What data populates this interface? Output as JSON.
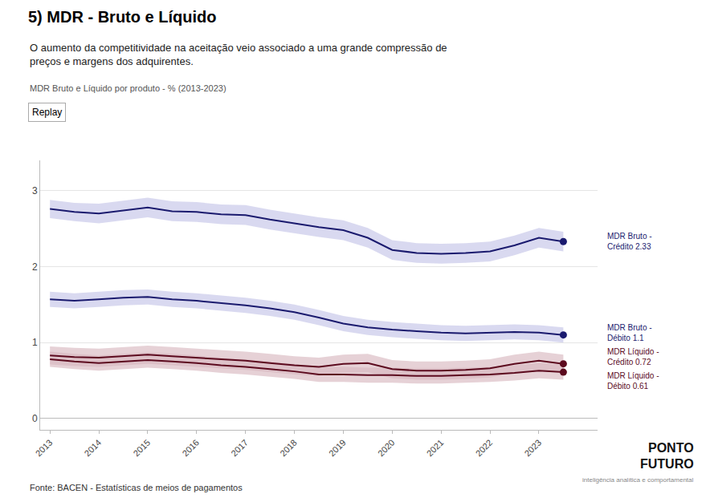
{
  "chart_data": {
    "type": "line",
    "title": "5) MDR - Bruto e Líquido",
    "subtitle": "O aumento da competitividade na aceitação veio associado a uma grande compressão de\npreços e margens dos adquirentes.",
    "chart_label": "MDR Bruto e Líquido por produto - % (2013-2023)",
    "button": "Replay",
    "source": "Fonte: BACEN - Estatísticas de meios de pagamentos",
    "logo": [
      "PONTO",
      "FUTURO",
      "inteligência analítica e comportamental"
    ],
    "x": [
      2013,
      2013.5,
      2014,
      2014.5,
      2015,
      2015.5,
      2016,
      2016.5,
      2017,
      2017.5,
      2018,
      2018.5,
      2019,
      2019.5,
      2020,
      2020.5,
      2021,
      2021.5,
      2022,
      2022.5,
      2023,
      2023.5
    ],
    "series": [
      {
        "label": "MDR Bruto -\nCrédito 2.33",
        "color": "#1a1a6e",
        "band_color": "#c5c5e8",
        "values": [
          2.76,
          2.72,
          2.7,
          2.74,
          2.78,
          2.73,
          2.72,
          2.69,
          2.68,
          2.62,
          2.57,
          2.52,
          2.48,
          2.38,
          2.22,
          2.18,
          2.17,
          2.18,
          2.2,
          2.28,
          2.38,
          2.33
        ],
        "upper": [
          2.88,
          2.84,
          2.83,
          2.87,
          2.91,
          2.86,
          2.85,
          2.82,
          2.81,
          2.75,
          2.7,
          2.65,
          2.61,
          2.51,
          2.35,
          2.31,
          2.3,
          2.31,
          2.33,
          2.41,
          2.51,
          2.46
        ],
        "lower": [
          2.64,
          2.6,
          2.57,
          2.61,
          2.65,
          2.6,
          2.59,
          2.56,
          2.55,
          2.49,
          2.44,
          2.39,
          2.35,
          2.25,
          2.09,
          2.05,
          2.04,
          2.05,
          2.07,
          2.15,
          2.25,
          2.2
        ]
      },
      {
        "label": "MDR Bruto -\nDébito 1.1",
        "color": "#1a1a6e",
        "band_color": "#c5c5e8",
        "values": [
          1.57,
          1.55,
          1.57,
          1.59,
          1.6,
          1.57,
          1.55,
          1.52,
          1.49,
          1.45,
          1.4,
          1.33,
          1.25,
          1.2,
          1.17,
          1.15,
          1.13,
          1.12,
          1.13,
          1.14,
          1.13,
          1.1
        ],
        "upper": [
          1.67,
          1.65,
          1.67,
          1.69,
          1.7,
          1.67,
          1.65,
          1.62,
          1.59,
          1.55,
          1.5,
          1.43,
          1.35,
          1.3,
          1.27,
          1.25,
          1.23,
          1.22,
          1.23,
          1.24,
          1.23,
          1.2
        ],
        "lower": [
          1.47,
          1.45,
          1.47,
          1.49,
          1.5,
          1.47,
          1.45,
          1.42,
          1.39,
          1.35,
          1.3,
          1.23,
          1.15,
          1.1,
          1.07,
          1.05,
          1.03,
          1.02,
          1.03,
          1.04,
          1.03,
          1.0
        ]
      },
      {
        "label": "MDR Líquido -\nCrédito 0.72",
        "color": "#5c0a1e",
        "band_color": "#d9b8c0",
        "values": [
          0.83,
          0.81,
          0.8,
          0.82,
          0.84,
          0.82,
          0.8,
          0.78,
          0.76,
          0.73,
          0.7,
          0.68,
          0.72,
          0.73,
          0.65,
          0.63,
          0.63,
          0.64,
          0.66,
          0.72,
          0.76,
          0.72
        ],
        "upper": [
          0.95,
          0.93,
          0.92,
          0.94,
          0.96,
          0.94,
          0.92,
          0.9,
          0.88,
          0.85,
          0.82,
          0.8,
          0.84,
          0.85,
          0.77,
          0.75,
          0.75,
          0.76,
          0.78,
          0.84,
          0.88,
          0.84
        ],
        "lower": [
          0.71,
          0.69,
          0.68,
          0.7,
          0.72,
          0.7,
          0.68,
          0.66,
          0.64,
          0.61,
          0.58,
          0.56,
          0.6,
          0.61,
          0.53,
          0.51,
          0.51,
          0.52,
          0.54,
          0.6,
          0.64,
          0.6
        ]
      },
      {
        "label": "MDR Líquido -\nDébito 0.61",
        "color": "#5c0a1e",
        "band_color": "#d9b8c0",
        "values": [
          0.78,
          0.75,
          0.73,
          0.75,
          0.77,
          0.75,
          0.73,
          0.7,
          0.68,
          0.65,
          0.62,
          0.58,
          0.58,
          0.57,
          0.57,
          0.56,
          0.56,
          0.57,
          0.58,
          0.6,
          0.63,
          0.61
        ],
        "upper": [
          0.88,
          0.85,
          0.83,
          0.85,
          0.87,
          0.85,
          0.83,
          0.8,
          0.78,
          0.75,
          0.72,
          0.68,
          0.68,
          0.67,
          0.67,
          0.66,
          0.66,
          0.67,
          0.68,
          0.7,
          0.73,
          0.71
        ],
        "lower": [
          0.68,
          0.65,
          0.63,
          0.65,
          0.67,
          0.65,
          0.63,
          0.6,
          0.58,
          0.55,
          0.52,
          0.48,
          0.48,
          0.47,
          0.47,
          0.46,
          0.46,
          0.47,
          0.48,
          0.5,
          0.53,
          0.51
        ]
      }
    ],
    "xlim": [
      2012.8,
      2024.2
    ],
    "xticks": [
      2013,
      2014,
      2015,
      2016,
      2017,
      2018,
      2019,
      2020,
      2021,
      2022,
      2023
    ],
    "ylim": [
      -0.15,
      3.4
    ],
    "yticks": [
      0,
      1,
      2,
      3
    ],
    "grid": "y"
  }
}
